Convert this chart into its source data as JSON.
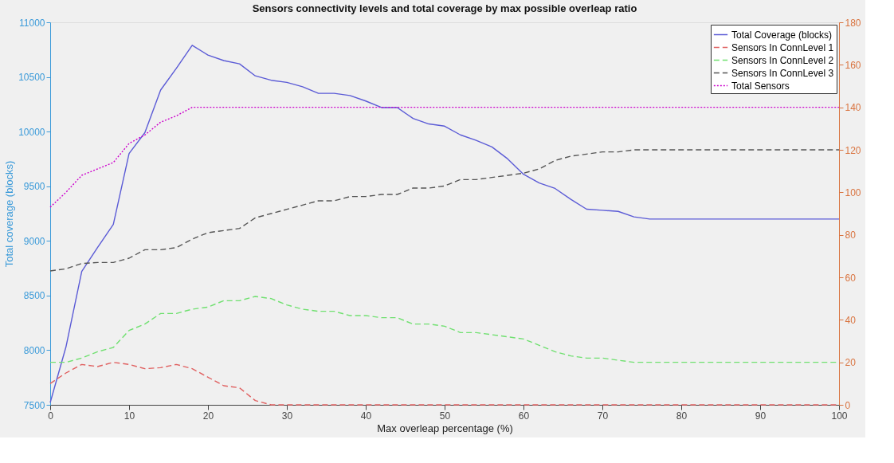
{
  "chart_data": {
    "type": "line",
    "title": "Sensors connectivity levels and total coverage by max possible overleap ratio",
    "xlabel": "Max overleap percentage (%)",
    "ylabel": "Total coverage (blocks)",
    "x": [
      0,
      2,
      4,
      6,
      8,
      10,
      12,
      14,
      16,
      18,
      20,
      22,
      24,
      26,
      28,
      30,
      32,
      34,
      36,
      38,
      40,
      42,
      44,
      46,
      48,
      50,
      52,
      54,
      56,
      58,
      60,
      62,
      64,
      66,
      68,
      70,
      72,
      74,
      76,
      78,
      80,
      82,
      84,
      86,
      88,
      90,
      92,
      94,
      96,
      98,
      100
    ],
    "series": [
      {
        "name": "Total Coverage (blocks)",
        "color": "#5b5bd6",
        "line_style": "solid",
        "values": [
          7520,
          8030,
          8720,
          8940,
          9150,
          9800,
          9990,
          10380,
          10580,
          10790,
          10700,
          10650,
          10620,
          10510,
          10470,
          10450,
          10410,
          10350,
          10350,
          10330,
          10280,
          10220,
          10220,
          10120,
          10070,
          10050,
          9970,
          9920,
          9860,
          9750,
          9610,
          9530,
          9480,
          9380,
          9290,
          9280,
          9270,
          9220,
          9200,
          9200,
          9200,
          9200,
          9200,
          9200,
          9200,
          9200,
          9200,
          9200,
          9200,
          9200,
          9200
        ]
      },
      {
        "name": "Sensors In ConnLevel 1",
        "color": "#e06060",
        "line_style": "dashed",
        "axis": "y2",
        "values": [
          10,
          15,
          19,
          18,
          20,
          19,
          17,
          17.5,
          19,
          17,
          13,
          9,
          8,
          2,
          0,
          0,
          0,
          0,
          0,
          0,
          0,
          0,
          0,
          0,
          0,
          0,
          0,
          0,
          0,
          0,
          0,
          0,
          0,
          0,
          0,
          0,
          0,
          0,
          0,
          0,
          0,
          0,
          0,
          0,
          0,
          0,
          0,
          0,
          0,
          0,
          0
        ]
      },
      {
        "name": "Sensors In ConnLevel 2",
        "color": "#70e070",
        "line_style": "dashed",
        "axis": "y2",
        "values": [
          20,
          20,
          22,
          25,
          27,
          35,
          38,
          43,
          43,
          45,
          46,
          49,
          49,
          51,
          50,
          47,
          45,
          44,
          44,
          42,
          42,
          41,
          41,
          38,
          38,
          37,
          34,
          34,
          33,
          32,
          31,
          28,
          25,
          23,
          22,
          22,
          21,
          20,
          20,
          20,
          20,
          20,
          20,
          20,
          20,
          20,
          20,
          20,
          20,
          20,
          20
        ]
      },
      {
        "name": "Sensors In ConnLevel 3",
        "color": "#555555",
        "line_style": "dashed",
        "axis": "y2",
        "values": [
          63,
          64,
          66.5,
          67,
          67,
          69,
          73,
          73,
          74,
          78,
          81,
          82,
          83,
          88,
          90,
          92,
          94,
          96,
          96,
          98,
          98,
          99,
          99,
          102,
          102,
          103,
          106,
          106,
          107,
          108,
          109,
          111,
          115,
          117,
          118,
          119,
          119,
          120,
          120,
          120,
          120,
          120,
          120,
          120,
          120,
          120,
          120,
          120,
          120,
          120,
          120
        ]
      },
      {
        "name": "Total Sensors",
        "color": "#cc00cc",
        "line_style": "dotted",
        "axis": "y2",
        "values": [
          93,
          100,
          108,
          111,
          114,
          123,
          127,
          133,
          136,
          140,
          140,
          140,
          140,
          140,
          140,
          140,
          140,
          140,
          140,
          140,
          140,
          140,
          140,
          140,
          140,
          140,
          140,
          140,
          140,
          140,
          140,
          140,
          140,
          140,
          140,
          140,
          140,
          140,
          140,
          140,
          140,
          140,
          140,
          140,
          140,
          140,
          140,
          140,
          140,
          140,
          140
        ]
      }
    ],
    "xlim": [
      0,
      100
    ],
    "xticks": [
      0,
      10,
      20,
      30,
      40,
      50,
      60,
      70,
      80,
      90,
      100
    ],
    "ylim": [
      7500,
      11000
    ],
    "yticks": [
      7500,
      8000,
      8500,
      9000,
      9500,
      10000,
      10500,
      11000
    ],
    "y2lim": [
      0,
      180
    ],
    "y2ticks": [
      0,
      20,
      40,
      60,
      80,
      100,
      120,
      140,
      160,
      180
    ],
    "grid": false,
    "legend": "top right"
  }
}
